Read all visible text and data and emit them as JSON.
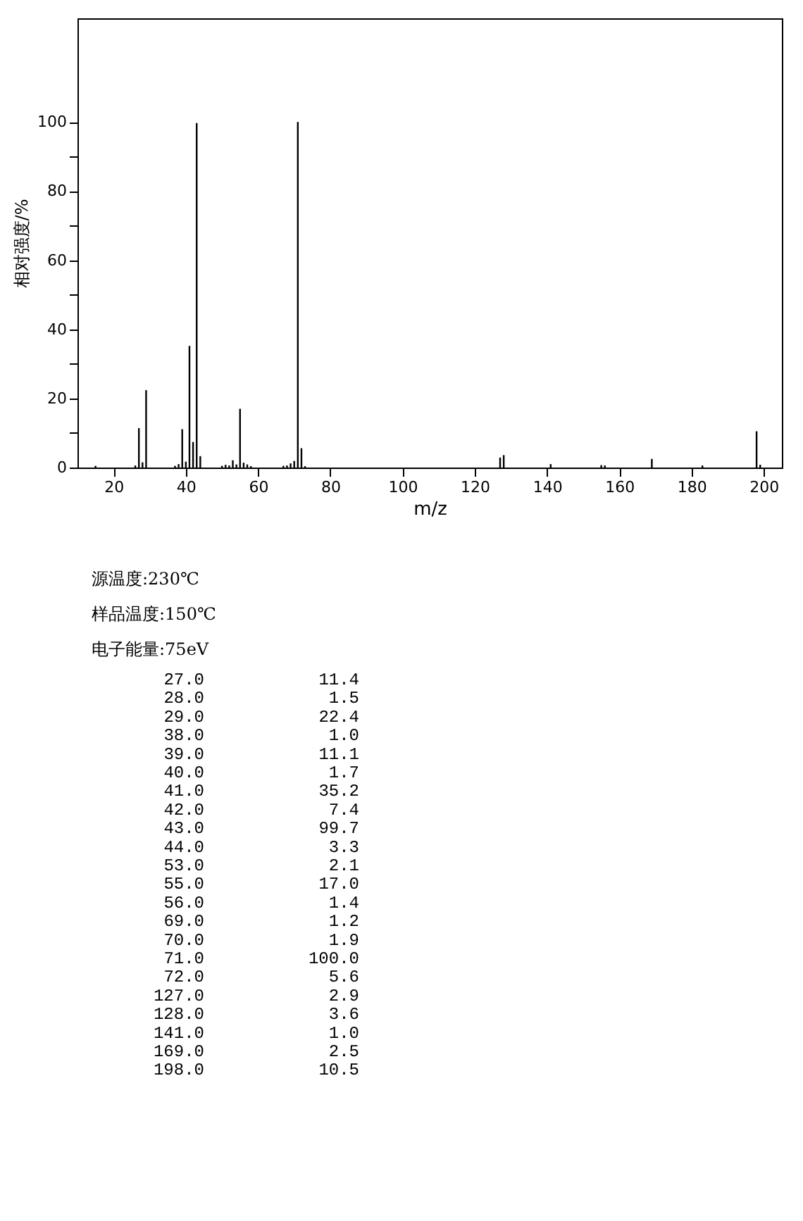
{
  "chart_data": {
    "type": "bar",
    "xlabel": "m/z",
    "ylabel": "相对强度/%",
    "x": [
      15,
      26,
      27,
      28,
      29,
      37,
      38,
      39,
      40,
      41,
      42,
      43,
      44,
      50,
      51,
      52,
      53,
      54,
      55,
      56,
      57,
      58,
      67,
      68,
      69,
      70,
      71,
      72,
      73,
      127,
      128,
      141,
      155,
      156,
      169,
      183,
      198,
      199
    ],
    "values": [
      0.5,
      0.6,
      11.4,
      1.5,
      22.4,
      0.5,
      1.0,
      11.1,
      1.7,
      35.2,
      7.4,
      99.7,
      3.3,
      0.5,
      0.8,
      0.6,
      2.1,
      0.9,
      17.0,
      1.4,
      0.9,
      0.4,
      0.5,
      0.6,
      1.2,
      1.9,
      100.0,
      5.6,
      0.4,
      2.9,
      3.6,
      1.0,
      0.7,
      0.6,
      2.5,
      0.6,
      10.5,
      0.8
    ],
    "color": "#000000",
    "xlim": [
      10,
      205
    ],
    "xticks": [
      20,
      40,
      60,
      80,
      100,
      120,
      140,
      160,
      180,
      200
    ],
    "ylim": [
      0,
      130
    ],
    "yticks": [
      0,
      {
        "value": 10,
        "label": null
      },
      20,
      {
        "value": 30,
        "label": null
      },
      40,
      {
        "value": 50,
        "label": null
      },
      60,
      {
        "value": 70,
        "label": null
      },
      80,
      {
        "value": 90,
        "label": null
      },
      100
    ],
    "grid": false,
    "annotations": [
      "源温度:230℃",
      "样品温度:150℃",
      "电子能量:75eV",
      "27.0",
      "11.4",
      "28.0",
      "1.5",
      "29.0",
      "22.4",
      "38.0",
      "1.0",
      "39.0",
      "11.1",
      "40.0",
      "1.7",
      "41.0",
      "35.2",
      "42.0",
      "7.4",
      "43.0",
      "99.7",
      "44.0",
      "3.3",
      "53.0",
      "2.1",
      "55.0",
      "17.0",
      "56.0",
      "1.4",
      "69.0",
      "1.2",
      "70.0",
      "1.9",
      "71.0",
      "100.0",
      "72.0",
      "5.6",
      "127.0",
      "2.9",
      "128.0",
      "3.6",
      "141.0",
      "1.0",
      "169.0",
      "2.5",
      "198.0",
      "10.5"
    ]
  }
}
